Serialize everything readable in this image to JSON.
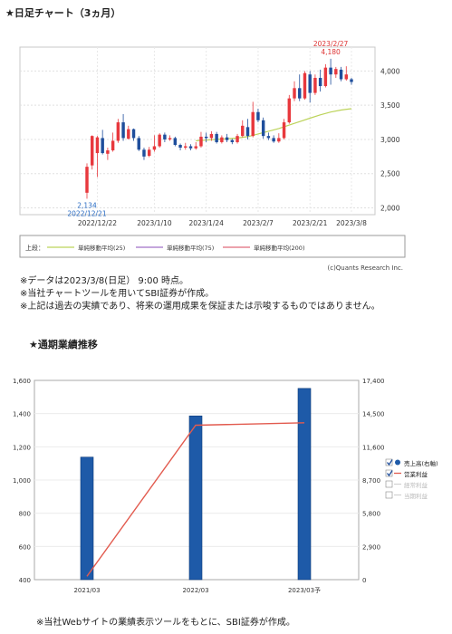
{
  "section1": {
    "title": "★日足チャート（3ヵ月）"
  },
  "section2": {
    "title": "★通期業績推移"
  },
  "colors": {
    "up": "#e8383d",
    "down": "#1f4e9c",
    "ma25": "#bcd35a",
    "ma75": "#a070c8",
    "ma200": "#e06a7a",
    "bar": "#1e5aa8",
    "line": "#e25b4f"
  },
  "chart_data": [
    {
      "type": "candlestick",
      "title": "",
      "x_ticks": [
        "2022/12/22",
        "2023/1/10",
        "2023/1/24",
        "2023/2/7",
        "2023/2/21",
        "2023/3/8"
      ],
      "y_ticks": [
        2000,
        2500,
        3000,
        3500,
        4000
      ],
      "y_tick_labels": [
        "2,000",
        "2,500",
        "3,000",
        "3,500",
        "4,000"
      ],
      "ylim": [
        1900,
        4350
      ],
      "annotations": {
        "high": {
          "date": "2023/2/27",
          "value": "4,180"
        },
        "low": {
          "date": "2022/12/21",
          "value": "2,134"
        }
      },
      "legend_label": "上段：",
      "legend": [
        "単純移動平均(25)",
        "単純移動平均(75)",
        "単純移動平均(200)"
      ],
      "credit": "(c)Quants Research Inc.",
      "candles": [
        [
          2220,
          2600,
          2134,
          2650
        ],
        [
          2620,
          3050,
          2560,
          3060
        ],
        [
          2800,
          3030,
          2450,
          3050
        ],
        [
          3020,
          2800,
          2780,
          3140
        ],
        [
          2790,
          2840,
          2700,
          2880
        ],
        [
          2840,
          2980,
          2820,
          3100
        ],
        [
          2980,
          3250,
          2950,
          3300
        ],
        [
          3250,
          3020,
          2980,
          3370
        ],
        [
          3010,
          3150,
          3000,
          3200
        ],
        [
          3150,
          3020,
          2980,
          3160
        ],
        [
          3020,
          2850,
          2830,
          3050
        ],
        [
          2850,
          2750,
          2700,
          2880
        ],
        [
          2760,
          2850,
          2740,
          2890
        ],
        [
          2850,
          2900,
          2820,
          3060
        ],
        [
          2900,
          3070,
          2880,
          3090
        ],
        [
          3070,
          3000,
          2960,
          3100
        ],
        [
          3000,
          3020,
          2980,
          3060
        ],
        [
          3020,
          2920,
          2900,
          3040
        ],
        [
          2920,
          2880,
          2840,
          2940
        ],
        [
          2880,
          2900,
          2850,
          2950
        ],
        [
          2900,
          2870,
          2840,
          2930
        ],
        [
          2870,
          2900,
          2850,
          2960
        ],
        [
          2900,
          3040,
          2880,
          3110
        ],
        [
          3040,
          3020,
          2960,
          3100
        ],
        [
          3020,
          3080,
          2980,
          3120
        ],
        [
          3080,
          2960,
          2940,
          3110
        ],
        [
          2960,
          3030,
          2940,
          3060
        ],
        [
          3030,
          2990,
          2960,
          3080
        ],
        [
          2990,
          2960,
          2930,
          3010
        ],
        [
          2960,
          3050,
          2940,
          3080
        ],
        [
          3050,
          3200,
          3030,
          3280
        ],
        [
          3180,
          3050,
          3000,
          3300
        ],
        [
          3050,
          3400,
          3030,
          3550
        ],
        [
          3400,
          3280,
          3250,
          3450
        ],
        [
          3280,
          3050,
          3010,
          3320
        ],
        [
          3050,
          3020,
          2990,
          3100
        ],
        [
          3020,
          2970,
          2950,
          3060
        ],
        [
          2970,
          3020,
          2950,
          3090
        ],
        [
          3020,
          3250,
          3000,
          3300
        ],
        [
          3250,
          3600,
          3230,
          3650
        ],
        [
          3600,
          3750,
          3560,
          3850
        ],
        [
          3750,
          3600,
          3560,
          3950
        ],
        [
          3600,
          3970,
          3580,
          4000
        ],
        [
          3950,
          3680,
          3540,
          4000
        ],
        [
          3680,
          3900,
          3650,
          3950
        ],
        [
          3900,
          3780,
          3700,
          4020
        ],
        [
          3780,
          4050,
          3760,
          4100
        ],
        [
          4050,
          3950,
          3800,
          4180
        ],
        [
          3950,
          4030,
          3900,
          4060
        ],
        [
          4020,
          3880,
          3850,
          4060
        ],
        [
          3880,
          3950,
          3860,
          4070
        ],
        [
          3880,
          3840,
          3800,
          3900
        ]
      ],
      "ma25_values": [
        2980,
        2990,
        3000,
        3010,
        3020,
        3040,
        3080,
        3120,
        3160,
        3210,
        3260,
        3310,
        3360,
        3400,
        3430,
        3450
      ]
    },
    {
      "type": "bar_line",
      "title": "",
      "categories": [
        "2021/03",
        "2022/03",
        "2023/03予"
      ],
      "y_left_ticks": [
        "400",
        "600",
        "800",
        "1,000",
        "1,200",
        "1,400",
        "1,600"
      ],
      "y_left_lim": [
        400,
        1600
      ],
      "y_right_ticks": [
        "0",
        "2,900",
        "5,800",
        "8,700",
        "11,600",
        "14,500",
        "17,400"
      ],
      "y_right_lim": [
        0,
        17400
      ],
      "series": [
        {
          "name": "売上高(右軸)",
          "axis": "right",
          "kind": "bar",
          "values": [
            10700,
            14300,
            16700
          ]
        },
        {
          "name": "営業利益",
          "axis": "left",
          "kind": "line",
          "values": [
            420,
            1330,
            1345
          ]
        }
      ],
      "legend": [
        {
          "label": "売上高(右軸)",
          "checked": true,
          "active": true
        },
        {
          "label": "営業利益",
          "checked": true,
          "active": true
        },
        {
          "label": "経常利益",
          "checked": false,
          "active": false
        },
        {
          "label": "当期利益",
          "checked": false,
          "active": false
        }
      ]
    }
  ],
  "notes": [
    "※データは2023/3/8(日足）  9:00  時点。",
    "※当社チャートツールを用いてSBI証券が作成。",
    "※上記は過去の実績であり、将来の運用成果を保証または示唆するものではありません。"
  ],
  "footer": "※当社Webサイトの業績表示ツールをもとに、SBI証券が作成。"
}
